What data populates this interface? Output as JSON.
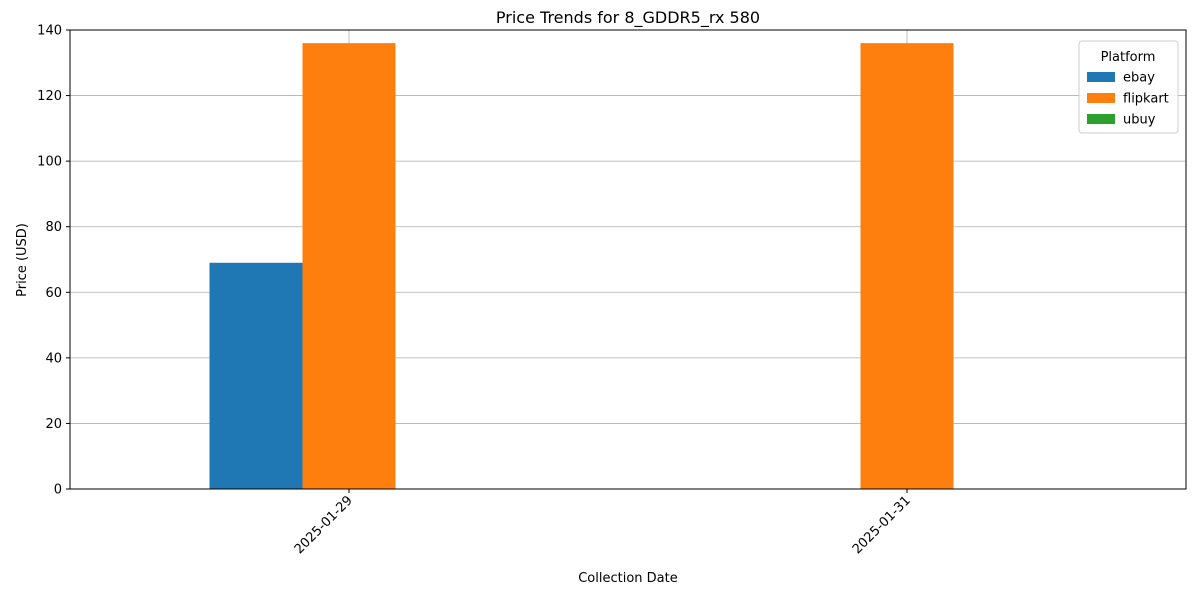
{
  "chart_data": {
    "type": "bar",
    "title": "Price Trends for 8_GDDR5_rx 580",
    "xlabel": "Collection Date",
    "ylabel": "Price (USD)",
    "categories": [
      "2025-01-29",
      "2025-01-31"
    ],
    "ylim": [
      0,
      140
    ],
    "yticks": [
      0,
      20,
      40,
      60,
      80,
      100,
      120,
      140
    ],
    "grid": true,
    "legend": {
      "title": "Platform",
      "placement": "top-right"
    },
    "series": [
      {
        "name": "ebay",
        "color": "#1f77b4",
        "values": [
          69,
          null
        ]
      },
      {
        "name": "flipkart",
        "color": "#ff7f0e",
        "values": [
          136,
          136
        ]
      },
      {
        "name": "ubuy",
        "color": "#2ca02c",
        "values": [
          null,
          null
        ]
      }
    ]
  }
}
